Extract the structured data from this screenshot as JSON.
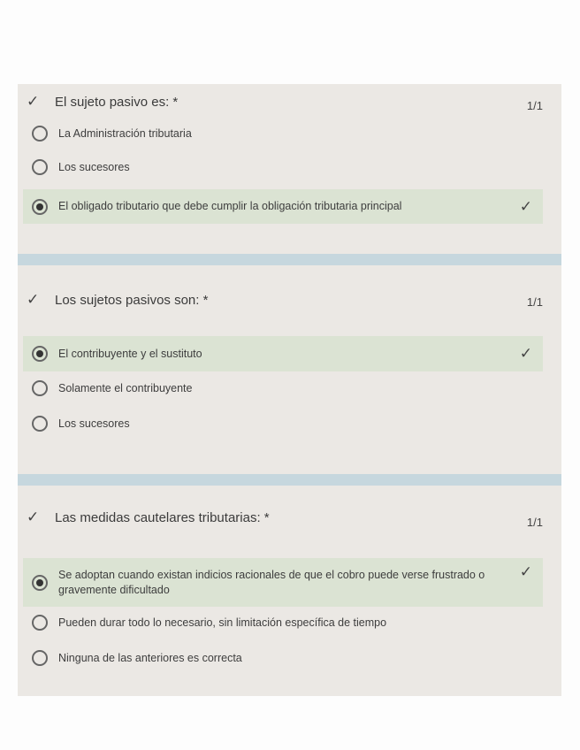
{
  "colors": {
    "card": "#ebe8e4",
    "band": "#c6d7de",
    "correct": "#dbe3d3"
  },
  "icons": {
    "correct": "check-icon",
    "radio": "radio-button"
  },
  "questions": [
    {
      "title": "El sujeto pasivo es: *",
      "score": "1/1",
      "options": [
        {
          "label": "La Administración tributaria",
          "selected": false
        },
        {
          "label": "Los sucesores",
          "selected": false
        },
        {
          "label": "El obligado tributario que debe cumplir la obligación tributaria principal",
          "selected": true,
          "correct": true
        }
      ]
    },
    {
      "title": "Los sujetos pasivos son: *",
      "score": "1/1",
      "options": [
        {
          "label": "El contribuyente y el sustituto",
          "selected": true,
          "correct": true
        },
        {
          "label": "Solamente el contribuyente",
          "selected": false
        },
        {
          "label": "Los sucesores",
          "selected": false
        }
      ]
    },
    {
      "title": "Las medidas cautelares tributarias: *",
      "score": "1/1",
      "options": [
        {
          "label": "Se adoptan cuando existan indicios racionales de que el cobro puede verse frustrado o gravemente dificultado",
          "selected": true,
          "correct": true
        },
        {
          "label": "Pueden durar todo lo necesario, sin limitación específica de tiempo",
          "selected": false
        },
        {
          "label": "Ninguna de las anteriores es correcta",
          "selected": false
        }
      ]
    }
  ]
}
